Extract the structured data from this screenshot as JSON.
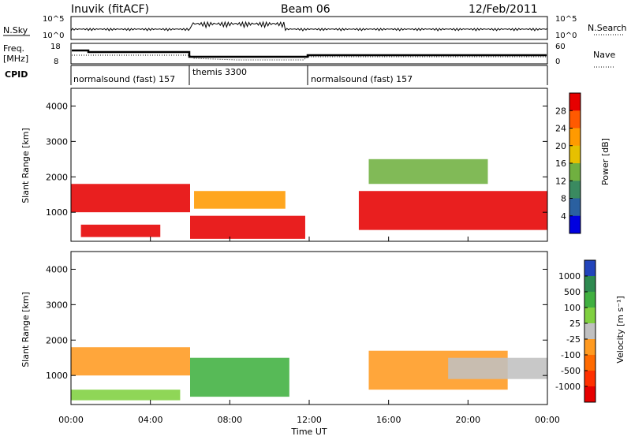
{
  "header": {
    "station": "Inuvik (fitACF)",
    "beam": "Beam 06",
    "date": "12/Feb/2011"
  },
  "top_panels": {
    "nsky_label": "N.Sky",
    "nsky_ticks": [
      "10^5",
      "10^0"
    ],
    "nsearch_label": "N.Search",
    "nsearch_ticks": [
      "10^5",
      "10^0"
    ],
    "freq_label": "Freq.",
    "freq_unit": "[MHz]",
    "freq_ticks": [
      "18",
      "8"
    ],
    "nave_label": "Nave",
    "nave_ticks": [
      "60",
      "0"
    ],
    "cpid_label": "CPID",
    "cpid_segments": [
      {
        "label": "normalsound (fast) 157",
        "start_hour": 0,
        "end_hour": 6
      },
      {
        "label": "themis 3300",
        "start_hour": 6,
        "end_hour": 12
      },
      {
        "label": "normalsound (fast) 157",
        "start_hour": 12,
        "end_hour": 24
      }
    ]
  },
  "chart_data": [
    {
      "type": "heatmap",
      "quantity": "power",
      "ylabel": "Slant Range [km]",
      "ylim": [
        180,
        4500
      ],
      "yticks": [
        1000,
        2000,
        3000,
        4000
      ],
      "xlim": [
        0,
        24
      ],
      "colorbar": {
        "label": "Power [dB]",
        "ticks": [
          "28",
          "24",
          "20",
          "16",
          "12",
          "8",
          "4"
        ],
        "colors": [
          "#e60000",
          "#ff5a00",
          "#ff9a00",
          "#e6c000",
          "#70b040",
          "#3a8a60",
          "#2a60a0",
          "#0000e0"
        ]
      },
      "echo_regions": [
        {
          "hour_start": 0.0,
          "hour_end": 6.0,
          "range_low": 1000,
          "range_high": 1800,
          "level_dB": 28
        },
        {
          "hour_start": 0.5,
          "hour_end": 4.5,
          "range_low": 300,
          "range_high": 650,
          "level_dB": 26
        },
        {
          "hour_start": 6.0,
          "hour_end": 11.8,
          "range_low": 250,
          "range_high": 900,
          "level_dB": 27
        },
        {
          "hour_start": 6.2,
          "hour_end": 10.8,
          "range_low": 1100,
          "range_high": 1600,
          "level_dB": 20
        },
        {
          "hour_start": 14.5,
          "hour_end": 24.0,
          "range_low": 500,
          "range_high": 1600,
          "level_dB": 26
        },
        {
          "hour_start": 15.0,
          "hour_end": 21.0,
          "range_low": 1800,
          "range_high": 2500,
          "level_dB": 12
        }
      ]
    },
    {
      "type": "heatmap",
      "quantity": "velocity",
      "xlabel": "Time UT",
      "ylabel": "Slant Range [km]",
      "ylim": [
        180,
        4500
      ],
      "yticks": [
        1000,
        2000,
        3000,
        4000
      ],
      "xlim": [
        0,
        24
      ],
      "xticks": [
        "00:00",
        "04:00",
        "08:00",
        "12:00",
        "16:00",
        "20:00",
        "00:00"
      ],
      "colorbar": {
        "label": "Velocity [m s⁻¹]",
        "ticks": [
          "1000",
          "500",
          "100",
          "25",
          "-25",
          "-100",
          "-500",
          "-1000"
        ],
        "colors": [
          "#2244bb",
          "#2e8a50",
          "#40b040",
          "#80d040",
          "#c0c0c0",
          "#ff9a20",
          "#ff6a00",
          "#ff3000",
          "#e60000"
        ]
      },
      "echo_regions": [
        {
          "hour_start": 0.0,
          "hour_end": 6.0,
          "range_low": 1000,
          "range_high": 1800,
          "velocity": -100
        },
        {
          "hour_start": 0.0,
          "hour_end": 5.5,
          "range_low": 300,
          "range_high": 600,
          "velocity": 25
        },
        {
          "hour_start": 6.0,
          "hour_end": 11.0,
          "range_low": 400,
          "range_high": 1500,
          "velocity": 100
        },
        {
          "hour_start": 15.0,
          "hour_end": 22.0,
          "range_low": 600,
          "range_high": 1700,
          "velocity": -100
        },
        {
          "hour_start": 19.0,
          "hour_end": 24.0,
          "range_low": 900,
          "range_high": 1500,
          "velocity": 0
        }
      ]
    }
  ]
}
